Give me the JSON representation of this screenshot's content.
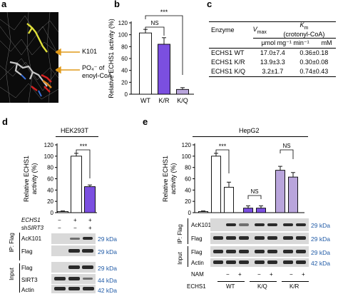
{
  "panel_a": {
    "letter": "a",
    "labels": {
      "k101": "K101",
      "po4_line1": "PO₄⁻ of",
      "po4_line2": "enoyl-CoA"
    }
  },
  "panel_b": {
    "letter": "b",
    "ylabel": "Relative ECHS1 activity (%)",
    "yticks": [
      "0",
      "20",
      "40",
      "60",
      "80",
      "100",
      "120"
    ],
    "ns": "NS",
    "sig": "***"
  },
  "panel_c": {
    "letter": "c",
    "headers": {
      "enzyme": "Enzyme",
      "vmax": "V",
      "vmax_sub": "max",
      "km": "K",
      "km_sub": "m",
      "km_unit": "(crotonyl-CoA)"
    },
    "units": {
      "vmax": "μmol mg⁻¹ min⁻¹",
      "km": "mM"
    },
    "rows": [
      {
        "enzyme": "ECHS1 WT",
        "vmax": "17.0±7.4",
        "km": "0.36±0.18"
      },
      {
        "enzyme": "ECHS1 K/R",
        "vmax": "13.9±3.3",
        "km": "0.30±0.08"
      },
      {
        "enzyme": "ECHS1 K/Q",
        "vmax": "3.2±1.7",
        "km": "0.74±0.43"
      }
    ]
  },
  "panel_d": {
    "letter": "d",
    "cell_line": "HEK293T",
    "ylabel_line1": "Relative ECHS1",
    "ylabel_line2": "activity (%)",
    "yticks": [
      "0",
      "20",
      "40",
      "60",
      "80",
      "100",
      "120"
    ],
    "sig": "***",
    "row_echs1": {
      "label": "ECHS1",
      "marks": [
        "−",
        "+",
        "+"
      ]
    },
    "row_shsirt3": {
      "label_prefix": "sh",
      "label_italic": "SIRT3",
      "marks": [
        "−",
        "−",
        "+"
      ]
    },
    "blots": [
      {
        "name": "AcK101",
        "kda": "29 kDa"
      },
      {
        "name": "Flag",
        "kda": "29 kDa"
      },
      {
        "name": "Flag",
        "kda": "29 kDa"
      },
      {
        "name": "SIRT3",
        "kda": "44 kDa"
      },
      {
        "name": "Actin",
        "kda": "42 kDa"
      }
    ],
    "group_ip": "IP: Flag",
    "group_input": "Input"
  },
  "panel_e": {
    "letter": "e",
    "cell_line": "HepG2",
    "ylabel_line1": "Relative ECHS1",
    "ylabel_line2": "activity (%)",
    "yticks": [
      "0",
      "20",
      "40",
      "60",
      "80",
      "100",
      "120"
    ],
    "sig": "***",
    "ns1": "NS",
    "ns2": "NS",
    "blots": [
      {
        "name": "AcK101",
        "kda": "29 kDa"
      },
      {
        "name": "Flag",
        "kda": "29 kDa"
      },
      {
        "name": "Flag",
        "kda": "29 kDa"
      },
      {
        "name": "Actin",
        "kda": "42 kDa"
      }
    ],
    "group_ip": "IP: Flag",
    "group_input": "Input",
    "row_nam": {
      "label": "NAM",
      "marks": [
        "−",
        "+",
        "−",
        "+",
        "−",
        "+"
      ]
    },
    "row_echs1": {
      "label": "ECHS1",
      "groups": [
        "WT",
        "K/Q",
        "K/R"
      ]
    }
  },
  "chart_data": [
    {
      "type": "bar",
      "panel": "b",
      "ylabel": "Relative ECHS1 activity (%)",
      "ylim": [
        0,
        120
      ],
      "categories": [
        "WT",
        "K/R",
        "K/Q"
      ],
      "values": [
        103,
        84,
        8
      ],
      "errors": [
        6,
        11,
        3
      ],
      "colors": [
        "#ffffff",
        "#7b4fe0",
        "#b9a5dc"
      ]
    },
    {
      "type": "bar",
      "panel": "d",
      "ylabel": "Relative ECHS1 activity (%)",
      "ylim": [
        0,
        120
      ],
      "values": [
        2,
        100,
        46
      ],
      "errors": [
        1,
        5,
        3
      ],
      "colors": [
        "#ffffff",
        "#ffffff",
        "#7b4fe0"
      ]
    },
    {
      "type": "bar",
      "panel": "e",
      "ylabel": "Relative ECHS1 activity (%)",
      "ylim": [
        0,
        120
      ],
      "values": [
        2,
        100,
        45,
        8,
        8,
        75,
        63
      ],
      "errors": [
        1,
        5,
        9,
        4,
        4,
        7,
        8
      ],
      "colors": [
        "#ffffff",
        "#ffffff",
        "#ffffff",
        "#7b4fe0",
        "#7b4fe0",
        "#b9a5dc",
        "#b9a5dc"
      ]
    }
  ]
}
